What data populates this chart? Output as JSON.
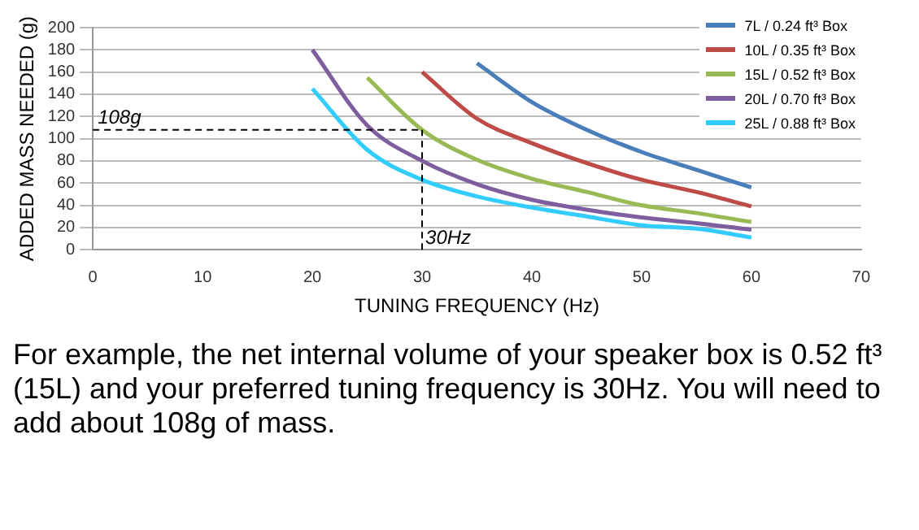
{
  "chart_data": {
    "type": "line",
    "xlabel": "TUNING FREQUENCY (Hz)",
    "ylabel": "ADDED MASS NEEDED (g)",
    "xlim": [
      0,
      70
    ],
    "xticks": [
      0,
      10,
      20,
      30,
      40,
      50,
      60,
      70
    ],
    "ylim": [
      0,
      200
    ],
    "yticks": [
      0,
      20,
      40,
      60,
      80,
      100,
      120,
      140,
      160,
      180,
      200
    ],
    "grid": "y",
    "legend": "top right",
    "marker": "none",
    "line_style": "solid",
    "series": [
      {
        "name": "7L / 0.24 ft³ Box",
        "color": "#4a7ebb",
        "x": [
          35,
          40,
          45,
          50,
          55,
          60
        ],
        "values": [
          168,
          133,
          108,
          88,
          72,
          56
        ]
      },
      {
        "name": "10L / 0.35 ft³ Box",
        "color": "#be4b48",
        "x": [
          30,
          35,
          40,
          45,
          50,
          55,
          60
        ],
        "values": [
          160,
          118,
          96,
          78,
          63,
          52,
          39
        ]
      },
      {
        "name": "15L / 0.52 ft³ Box",
        "color": "#98b954",
        "x": [
          25,
          30,
          35,
          40,
          45,
          50,
          55,
          60
        ],
        "values": [
          155,
          108,
          81,
          64,
          52,
          40,
          33,
          25
        ]
      },
      {
        "name": "20L / 0.70 ft³ Box",
        "color": "#7d5fa0",
        "x": [
          20,
          25,
          30,
          35,
          40,
          45,
          50,
          55,
          60
        ],
        "values": [
          180,
          112,
          80,
          59,
          45,
          36,
          29,
          24,
          18
        ]
      },
      {
        "name": "25L / 0.88 ft³ Box",
        "color": "#33ccff",
        "x": [
          20,
          25,
          30,
          35,
          40,
          45,
          50,
          55,
          60
        ],
        "values": [
          145,
          90,
          63,
          48,
          38,
          30,
          22,
          19,
          11
        ]
      }
    ],
    "ref_lines": [
      {
        "axis": "y",
        "value": 108,
        "label": "108g",
        "line_style": "dashed"
      },
      {
        "axis": "x",
        "value": 30,
        "label": "30Hz",
        "line_style": "dashed"
      }
    ],
    "annotations": [
      "For example, the net internal volume of your speaker box is 0.52 ft³ (15L) and your preferred tuning frequency is 30Hz. You will need to add about 108g of mass."
    ]
  }
}
